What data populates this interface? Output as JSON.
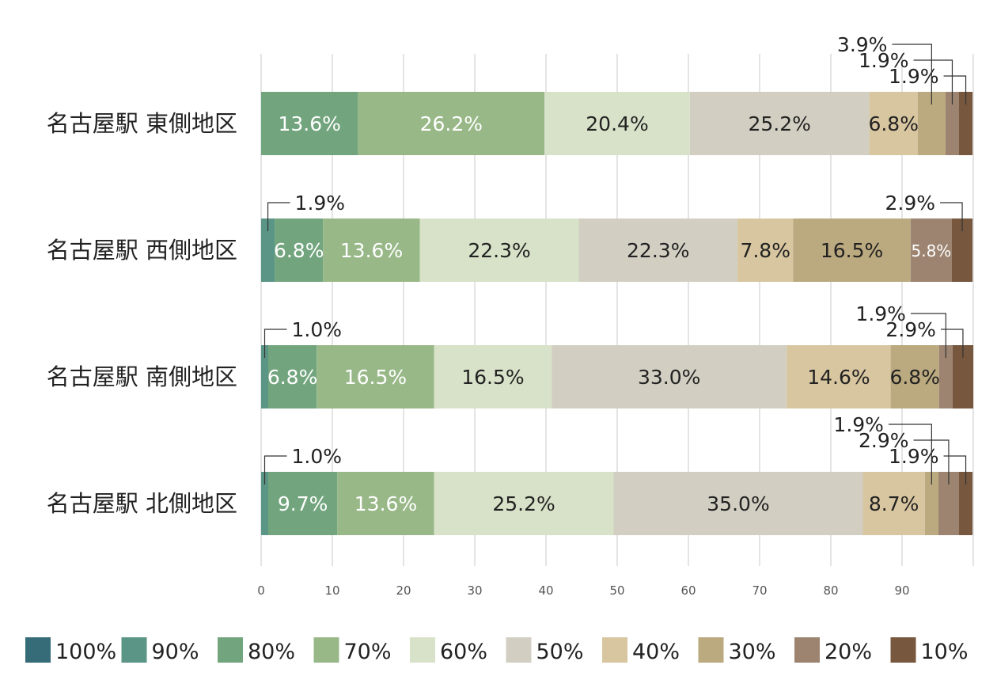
{
  "chart_data": {
    "type": "bar",
    "orientation": "horizontal",
    "stacked": true,
    "categories": [
      "名古屋駅 東側地区",
      "名古屋駅 西側地区",
      "名古屋駅 南側地区",
      "名古屋駅 北側地区"
    ],
    "xlim": [
      0,
      100
    ],
    "x_ticks": [
      "0",
      "10",
      "20",
      "30",
      "40",
      "50",
      "60",
      "70",
      "80",
      "90"
    ],
    "grid": true,
    "legend_position": "bottom",
    "series": [
      {
        "name": "100%",
        "color": "#356c78",
        "values": [
          0,
          0,
          0,
          0
        ],
        "labels": [
          "",
          "",
          "",
          ""
        ]
      },
      {
        "name": "90%",
        "color": "#5a9585",
        "values": [
          0,
          1.9,
          1.0,
          1.0
        ],
        "labels": [
          "",
          "1.9%",
          "1.0%",
          "1.0%"
        ]
      },
      {
        "name": "80%",
        "color": "#72a57e",
        "values": [
          13.6,
          6.8,
          6.8,
          9.7
        ],
        "labels": [
          "13.6%",
          "6.8%",
          "6.8%",
          "9.7%"
        ]
      },
      {
        "name": "70%",
        "color": "#98b888",
        "values": [
          26.2,
          13.6,
          16.5,
          13.6
        ],
        "labels": [
          "26.2%",
          "13.6%",
          "16.5%",
          "13.6%"
        ]
      },
      {
        "name": "60%",
        "color": "#d8e2c8",
        "values": [
          20.4,
          22.3,
          16.5,
          25.2
        ],
        "labels": [
          "20.4%",
          "22.3%",
          "16.5%",
          "25.2%"
        ]
      },
      {
        "name": "50%",
        "color": "#d2cfc2",
        "values": [
          25.2,
          22.3,
          33.0,
          35.0
        ],
        "labels": [
          "25.2%",
          "22.3%",
          "33.0%",
          "35.0%"
        ]
      },
      {
        "name": "40%",
        "color": "#d8c6a0",
        "values": [
          6.8,
          7.8,
          14.6,
          8.7
        ],
        "labels": [
          "6.8%",
          "7.8%",
          "14.6%",
          "8.7%"
        ]
      },
      {
        "name": "30%",
        "color": "#bba97f",
        "values": [
          3.9,
          16.5,
          6.8,
          1.9
        ],
        "labels": [
          "3.9%",
          "16.5%",
          "6.8%",
          "1.9%"
        ]
      },
      {
        "name": "20%",
        "color": "#9c8470",
        "values": [
          1.9,
          5.8,
          1.9,
          2.9
        ],
        "labels": [
          "1.9%",
          "5.8%",
          "1.9%",
          "2.9%"
        ]
      },
      {
        "name": "10%",
        "color": "#77573e",
        "values": [
          1.9,
          2.9,
          2.9,
          1.9
        ],
        "labels": [
          "1.9%",
          "2.9%",
          "2.9%",
          "1.9%"
        ]
      }
    ]
  }
}
